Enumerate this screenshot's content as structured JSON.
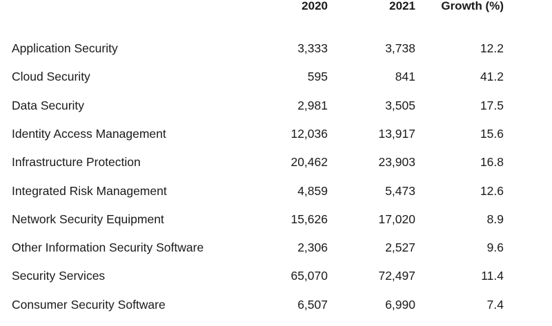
{
  "table": {
    "headers": {
      "col_2020": "2020",
      "col_2021": "2021",
      "col_growth": "Growth (%)"
    },
    "rows": [
      {
        "segment": "Application Security",
        "y2020": "3,333",
        "y2021": "3,738",
        "growth": "12.2"
      },
      {
        "segment": "Cloud Security",
        "y2020": "595",
        "y2021": "841",
        "growth": "41.2"
      },
      {
        "segment": "Data Security",
        "y2020": "2,981",
        "y2021": "3,505",
        "growth": "17.5"
      },
      {
        "segment": "Identity Access Management",
        "y2020": "12,036",
        "y2021": "13,917",
        "growth": "15.6"
      },
      {
        "segment": "Infrastructure Protection",
        "y2020": "20,462",
        "y2021": "23,903",
        "growth": "16.8"
      },
      {
        "segment": "Integrated Risk Management",
        "y2020": "4,859",
        "y2021": "5,473",
        "growth": "12.6"
      },
      {
        "segment": "Network Security Equipment",
        "y2020": "15,626",
        "y2021": "17,020",
        "growth": "8.9"
      },
      {
        "segment": "Other Information Security Software",
        "y2020": "2,306",
        "y2021": "2,527",
        "growth": "9.6"
      },
      {
        "segment": "Security Services",
        "y2020": "65,070",
        "y2021": "72,497",
        "growth": "11.4"
      },
      {
        "segment": "Consumer Security Software",
        "y2020": "6,507",
        "y2021": "6,990",
        "growth": "7.4"
      }
    ]
  }
}
